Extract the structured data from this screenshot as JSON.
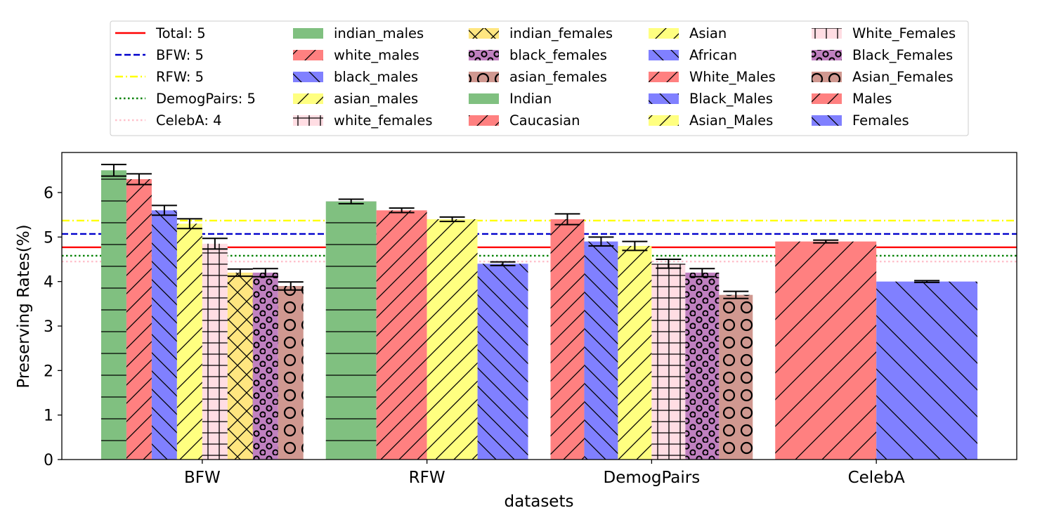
{
  "chart_data": {
    "type": "bar",
    "xlabel": "datasets",
    "ylabel": "Preserving Rates(%)",
    "ylim": [
      0,
      6.9
    ],
    "yticks": [
      0,
      1,
      2,
      3,
      4,
      5,
      6
    ],
    "grid": false,
    "legend_placement": "top-center",
    "groups": [
      {
        "name": "BFW",
        "bars": [
          {
            "label": "indian_males",
            "value": 6.5,
            "err": 0.13,
            "color": "#80c080",
            "hatch": "hline"
          },
          {
            "label": "white_males",
            "value": 6.3,
            "err": 0.12,
            "color": "#ff8080",
            "hatch": "fslash"
          },
          {
            "label": "black_males",
            "value": 5.6,
            "err": 0.11,
            "color": "#8080ff",
            "hatch": "bslash"
          },
          {
            "label": "asian_males",
            "value": 5.3,
            "err": 0.11,
            "color": "#ffff80",
            "hatch": "fslash"
          },
          {
            "label": "white_females",
            "value": 4.85,
            "err": 0.12,
            "color": "#ffdde3",
            "hatch": "plus"
          },
          {
            "label": "indian_females",
            "value": 4.2,
            "err": 0.08,
            "color": "#ffe680",
            "hatch": "cross"
          },
          {
            "label": "black_females",
            "value": 4.2,
            "err": 0.09,
            "color": "#c080c0",
            "hatch": "smallcircle"
          },
          {
            "label": "asian_females",
            "value": 3.9,
            "err": 0.09,
            "color": "#d09890",
            "hatch": "bigcircle"
          }
        ]
      },
      {
        "name": "RFW",
        "bars": [
          {
            "label": "Indian",
            "value": 5.8,
            "err": 0.05,
            "color": "#80c080",
            "hatch": "hline"
          },
          {
            "label": "Caucasian",
            "value": 5.6,
            "err": 0.05,
            "color": "#ff8080",
            "hatch": "fslash"
          },
          {
            "label": "Asian",
            "value": 5.4,
            "err": 0.05,
            "color": "#ffff80",
            "hatch": "fslash"
          },
          {
            "label": "African",
            "value": 4.4,
            "err": 0.04,
            "color": "#8080ff",
            "hatch": "bslash"
          }
        ]
      },
      {
        "name": "DemogPairs",
        "bars": [
          {
            "label": "White_Males",
            "value": 5.4,
            "err": 0.12,
            "color": "#ff8080",
            "hatch": "fslash"
          },
          {
            "label": "Black_Males",
            "value": 4.9,
            "err": 0.1,
            "color": "#8080ff",
            "hatch": "bslash"
          },
          {
            "label": "Asian_Males",
            "value": 4.8,
            "err": 0.1,
            "color": "#ffff80",
            "hatch": "fslash"
          },
          {
            "label": "White_Females",
            "value": 4.4,
            "err": 0.1,
            "color": "#ffdde3",
            "hatch": "plus"
          },
          {
            "label": "Black_Females",
            "value": 4.2,
            "err": 0.09,
            "color": "#c080c0",
            "hatch": "smallcircle"
          },
          {
            "label": "Asian_Females",
            "value": 3.7,
            "err": 0.08,
            "color": "#d09890",
            "hatch": "bigcircle"
          }
        ]
      },
      {
        "name": "CelebA",
        "bars": [
          {
            "label": "Males",
            "value": 4.9,
            "err": 0.03,
            "color": "#ff8080",
            "hatch": "fslash"
          },
          {
            "label": "Females",
            "value": 4.0,
            "err": 0.02,
            "color": "#8080ff",
            "hatch": "bslash"
          }
        ]
      }
    ],
    "reference_lines": [
      {
        "label": "Total: 5",
        "value": 4.77,
        "color": "#ff0000",
        "dash": "solid"
      },
      {
        "label": "BFW: 5",
        "value": 5.07,
        "color": "#0000cc",
        "dash": "dashed"
      },
      {
        "label": "RFW: 5",
        "value": 5.37,
        "color": "#ffff00",
        "dash": "dashdot"
      },
      {
        "label": "DemogPairs: 5",
        "value": 4.58,
        "color": "#008000",
        "dash": "dotted"
      },
      {
        "label": "CelebA: 4",
        "value": 4.45,
        "color": "#ffc0cb",
        "dash": "dotted"
      }
    ]
  }
}
